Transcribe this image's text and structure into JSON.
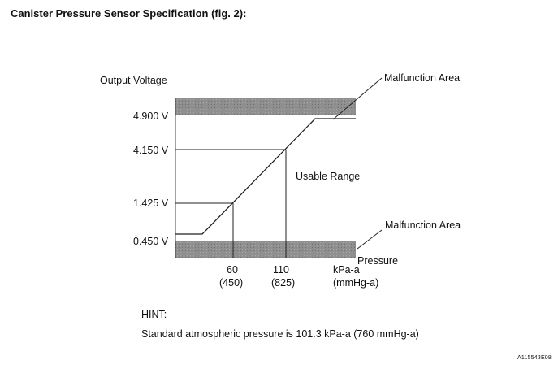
{
  "title": "Canister Pressure Sensor Specification (fig. 2):",
  "y_axis_label": "Output Voltage",
  "x_axis_label": "Pressure",
  "y_ticks": [
    "4.900 V",
    "4.150 V",
    "1.425 V",
    "0.450 V"
  ],
  "x_ticks": [
    {
      "value": "60",
      "sub": "(450)"
    },
    {
      "value": "110",
      "sub": "(825)"
    },
    {
      "value": "kPa-a",
      "sub": "(mmHg-a)"
    }
  ],
  "regions": {
    "malfunction_upper": "Malfunction Area",
    "malfunction_lower": "Malfunction Area",
    "usable": "Usable Range"
  },
  "hint_label": "HINT:",
  "hint_text": "Standard atmospheric pressure is 101.3 kPa-a (760 mmHg-a)",
  "doc_id": "A115543E08",
  "colors": {
    "band": "#8c8c8c",
    "line": "#222222"
  }
}
